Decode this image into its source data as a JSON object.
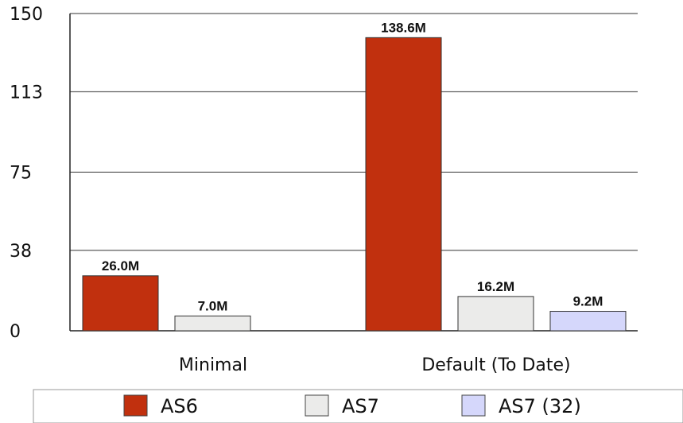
{
  "chart_data": {
    "type": "bar",
    "categories": [
      "Minimal",
      "Default (To Date)"
    ],
    "series": [
      {
        "name": "AS6",
        "values": [
          26.0,
          138.6
        ],
        "labels": [
          "26.0M",
          "138.6M"
        ],
        "color": "#c1300e"
      },
      {
        "name": "AS7",
        "values": [
          7.0,
          16.2
        ],
        "labels": [
          "7.0M",
          "16.2M"
        ],
        "color": "#ebebea"
      },
      {
        "name": "AS7 (32)",
        "values": [
          null,
          9.2
        ],
        "labels": [
          null,
          "9.2M"
        ],
        "color": "#d5d7fb"
      }
    ],
    "y_ticks": [
      0,
      38,
      75,
      113,
      150
    ],
    "ylim": [
      0,
      150
    ],
    "grid": true,
    "legend_position": "bottom"
  }
}
